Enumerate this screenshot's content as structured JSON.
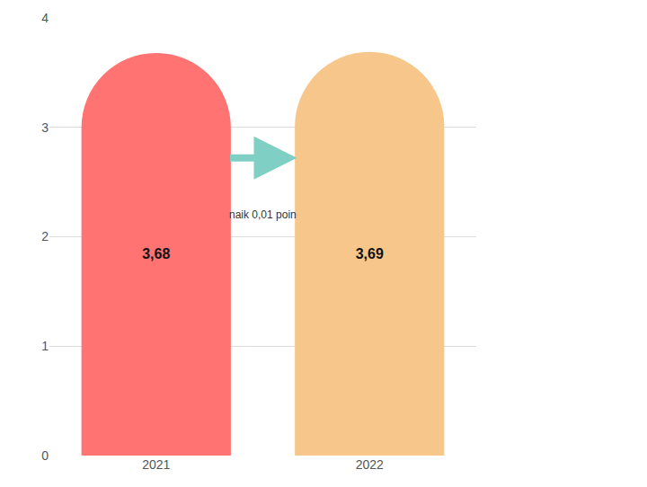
{
  "chart_data": {
    "type": "bar",
    "categories": [
      "2021",
      "2022"
    ],
    "values": [
      3.68,
      3.69
    ],
    "value_labels": [
      "3,68",
      "3,69"
    ],
    "colors": [
      "#ff7372",
      "#f7c68a"
    ],
    "ylim": [
      0,
      4
    ],
    "yticks": [
      0,
      1,
      2,
      3,
      4
    ],
    "grid": true,
    "data_labels": true,
    "annotations": [
      "naik 0,01 poin"
    ]
  }
}
